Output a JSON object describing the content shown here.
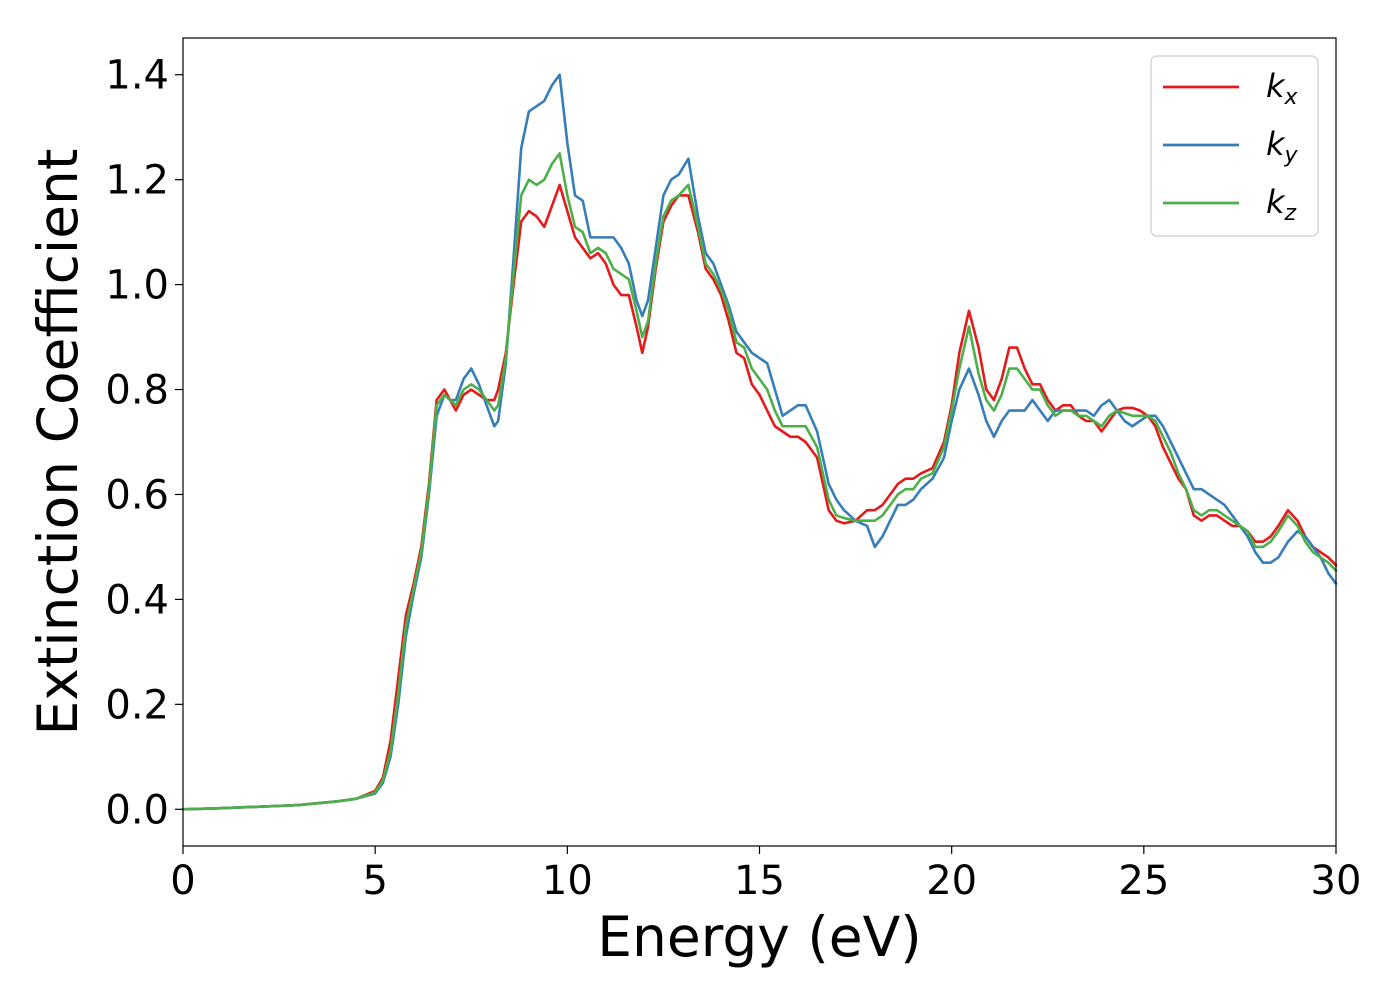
{
  "chart_data": {
    "type": "line",
    "title": "",
    "xlabel": "Energy (eV)",
    "ylabel": "Extinction Coefficient",
    "xlim": [
      0,
      30
    ],
    "ylim": [
      -0.07,
      1.47
    ],
    "xticks": [
      0,
      5,
      10,
      15,
      20,
      25,
      30
    ],
    "yticks": [
      0.0,
      0.2,
      0.4,
      0.6,
      0.8,
      1.0,
      1.2,
      1.4
    ],
    "xtick_labels": [
      "0",
      "5",
      "10",
      "15",
      "20",
      "25",
      "30"
    ],
    "ytick_labels": [
      "0.0",
      "0.2",
      "0.4",
      "0.6",
      "0.8",
      "1.0",
      "1.2",
      "1.4"
    ],
    "grid": false,
    "legend": "top-right",
    "series": [
      {
        "name": "k",
        "subscript": "x",
        "color": "#e41a1c",
        "x": [
          0,
          1,
          2,
          3,
          4,
          4.5,
          5,
          5.2,
          5.4,
          5.6,
          5.8,
          6.0,
          6.2,
          6.4,
          6.6,
          6.8,
          6.95,
          7.1,
          7.3,
          7.5,
          7.7,
          7.9,
          8.1,
          8.2,
          8.4,
          8.6,
          8.8,
          9.0,
          9.2,
          9.4,
          9.6,
          9.8,
          10.0,
          10.2,
          10.4,
          10.6,
          10.8,
          11.0,
          11.2,
          11.4,
          11.6,
          11.8,
          11.95,
          12.1,
          12.3,
          12.5,
          12.7,
          12.9,
          13.15,
          13.4,
          13.6,
          13.8,
          14.0,
          14.2,
          14.4,
          14.6,
          14.8,
          15.0,
          15.2,
          15.4,
          15.6,
          15.8,
          16.0,
          16.2,
          16.5,
          16.8,
          17.0,
          17.2,
          17.5,
          17.8,
          18.0,
          18.2,
          18.4,
          18.6,
          18.8,
          19.0,
          19.2,
          19.5,
          19.8,
          20.0,
          20.2,
          20.45,
          20.7,
          20.9,
          21.1,
          21.3,
          21.5,
          21.7,
          21.9,
          22.1,
          22.3,
          22.5,
          22.7,
          22.9,
          23.1,
          23.3,
          23.5,
          23.7,
          23.9,
          24.1,
          24.3,
          24.5,
          24.7,
          24.9,
          25.1,
          25.3,
          25.5,
          25.7,
          25.9,
          26.1,
          26.3,
          26.5,
          26.7,
          26.9,
          27.1,
          27.3,
          27.5,
          27.7,
          27.9,
          28.1,
          28.3,
          28.5,
          28.75,
          29.0,
          29.2,
          29.4,
          29.6,
          29.8,
          30.0
        ],
        "values": [
          0.0,
          0.002,
          0.005,
          0.008,
          0.015,
          0.02,
          0.035,
          0.06,
          0.13,
          0.25,
          0.37,
          0.43,
          0.5,
          0.62,
          0.78,
          0.8,
          0.78,
          0.76,
          0.79,
          0.8,
          0.79,
          0.78,
          0.78,
          0.8,
          0.87,
          1.0,
          1.12,
          1.14,
          1.13,
          1.11,
          1.15,
          1.19,
          1.14,
          1.09,
          1.07,
          1.05,
          1.06,
          1.04,
          1.0,
          0.98,
          0.98,
          0.92,
          0.87,
          0.92,
          1.03,
          1.12,
          1.15,
          1.17,
          1.17,
          1.1,
          1.03,
          1.01,
          0.98,
          0.93,
          0.87,
          0.86,
          0.81,
          0.79,
          0.76,
          0.73,
          0.72,
          0.71,
          0.71,
          0.7,
          0.67,
          0.57,
          0.55,
          0.545,
          0.55,
          0.57,
          0.57,
          0.58,
          0.6,
          0.62,
          0.63,
          0.63,
          0.64,
          0.65,
          0.7,
          0.77,
          0.87,
          0.95,
          0.88,
          0.8,
          0.78,
          0.82,
          0.88,
          0.88,
          0.84,
          0.81,
          0.81,
          0.78,
          0.76,
          0.77,
          0.77,
          0.75,
          0.74,
          0.74,
          0.72,
          0.74,
          0.76,
          0.765,
          0.765,
          0.76,
          0.75,
          0.73,
          0.69,
          0.66,
          0.63,
          0.61,
          0.56,
          0.55,
          0.56,
          0.56,
          0.55,
          0.54,
          0.54,
          0.53,
          0.51,
          0.51,
          0.52,
          0.54,
          0.57,
          0.55,
          0.52,
          0.5,
          0.49,
          0.48,
          0.465
        ]
      },
      {
        "name": "k",
        "subscript": "y",
        "color": "#377eb8",
        "x": [
          0,
          1,
          2,
          3,
          4,
          4.5,
          5,
          5.2,
          5.4,
          5.6,
          5.8,
          6.0,
          6.2,
          6.4,
          6.6,
          6.8,
          6.95,
          7.1,
          7.3,
          7.5,
          7.7,
          7.9,
          8.1,
          8.2,
          8.4,
          8.6,
          8.8,
          9.0,
          9.2,
          9.4,
          9.6,
          9.8,
          10.0,
          10.2,
          10.4,
          10.6,
          10.8,
          11.0,
          11.2,
          11.4,
          11.6,
          11.8,
          11.95,
          12.1,
          12.3,
          12.5,
          12.7,
          12.9,
          13.15,
          13.4,
          13.6,
          13.8,
          14.0,
          14.2,
          14.4,
          14.6,
          14.8,
          15.0,
          15.2,
          15.4,
          15.6,
          15.8,
          16.0,
          16.2,
          16.5,
          16.8,
          17.0,
          17.2,
          17.5,
          17.8,
          18.0,
          18.2,
          18.4,
          18.6,
          18.8,
          19.0,
          19.2,
          19.5,
          19.8,
          20.0,
          20.2,
          20.45,
          20.7,
          20.9,
          21.1,
          21.3,
          21.5,
          21.7,
          21.9,
          22.1,
          22.3,
          22.5,
          22.7,
          22.9,
          23.1,
          23.3,
          23.5,
          23.7,
          23.9,
          24.1,
          24.3,
          24.5,
          24.7,
          24.9,
          25.1,
          25.3,
          25.5,
          25.7,
          25.9,
          26.1,
          26.3,
          26.5,
          26.7,
          26.9,
          27.1,
          27.3,
          27.5,
          27.7,
          27.9,
          28.1,
          28.3,
          28.5,
          28.75,
          29.0,
          29.2,
          29.4,
          29.6,
          29.8,
          30.0
        ],
        "values": [
          0.0,
          0.002,
          0.005,
          0.008,
          0.015,
          0.02,
          0.03,
          0.05,
          0.1,
          0.2,
          0.33,
          0.41,
          0.48,
          0.6,
          0.75,
          0.79,
          0.78,
          0.78,
          0.82,
          0.84,
          0.81,
          0.77,
          0.73,
          0.74,
          0.85,
          1.05,
          1.26,
          1.33,
          1.34,
          1.35,
          1.38,
          1.4,
          1.27,
          1.17,
          1.16,
          1.09,
          1.09,
          1.09,
          1.09,
          1.07,
          1.04,
          0.97,
          0.94,
          0.97,
          1.07,
          1.17,
          1.2,
          1.21,
          1.24,
          1.13,
          1.06,
          1.04,
          1.0,
          0.96,
          0.91,
          0.89,
          0.87,
          0.86,
          0.85,
          0.8,
          0.75,
          0.76,
          0.77,
          0.77,
          0.72,
          0.62,
          0.59,
          0.57,
          0.55,
          0.54,
          0.5,
          0.52,
          0.55,
          0.58,
          0.58,
          0.59,
          0.61,
          0.63,
          0.67,
          0.74,
          0.8,
          0.84,
          0.79,
          0.74,
          0.71,
          0.74,
          0.76,
          0.76,
          0.76,
          0.78,
          0.76,
          0.74,
          0.76,
          0.76,
          0.76,
          0.76,
          0.76,
          0.75,
          0.77,
          0.78,
          0.76,
          0.74,
          0.73,
          0.74,
          0.75,
          0.75,
          0.73,
          0.7,
          0.67,
          0.64,
          0.61,
          0.61,
          0.6,
          0.59,
          0.58,
          0.56,
          0.54,
          0.52,
          0.49,
          0.47,
          0.47,
          0.48,
          0.51,
          0.53,
          0.52,
          0.5,
          0.48,
          0.45,
          0.43
        ]
      },
      {
        "name": "k",
        "subscript": "z",
        "color": "#4daf4a",
        "x": [
          0,
          1,
          2,
          3,
          4,
          4.5,
          5,
          5.2,
          5.4,
          5.6,
          5.8,
          6.0,
          6.2,
          6.4,
          6.6,
          6.8,
          6.95,
          7.1,
          7.3,
          7.5,
          7.7,
          7.9,
          8.1,
          8.2,
          8.4,
          8.6,
          8.8,
          9.0,
          9.2,
          9.4,
          9.6,
          9.8,
          10.0,
          10.2,
          10.4,
          10.6,
          10.8,
          11.0,
          11.2,
          11.4,
          11.6,
          11.8,
          11.95,
          12.1,
          12.3,
          12.5,
          12.7,
          12.9,
          13.15,
          13.4,
          13.6,
          13.8,
          14.0,
          14.2,
          14.4,
          14.6,
          14.8,
          15.0,
          15.2,
          15.4,
          15.6,
          15.8,
          16.0,
          16.2,
          16.5,
          16.8,
          17.0,
          17.2,
          17.5,
          17.8,
          18.0,
          18.2,
          18.4,
          18.6,
          18.8,
          19.0,
          19.2,
          19.5,
          19.8,
          20.0,
          20.2,
          20.45,
          20.7,
          20.9,
          21.1,
          21.3,
          21.5,
          21.7,
          21.9,
          22.1,
          22.3,
          22.5,
          22.7,
          22.9,
          23.1,
          23.3,
          23.5,
          23.7,
          23.9,
          24.1,
          24.3,
          24.5,
          24.7,
          24.9,
          25.1,
          25.3,
          25.5,
          25.7,
          25.9,
          26.1,
          26.3,
          26.5,
          26.7,
          26.9,
          27.1,
          27.3,
          27.5,
          27.7,
          27.9,
          28.1,
          28.3,
          28.5,
          28.75,
          29.0,
          29.2,
          29.4,
          29.6,
          29.8,
          30.0
        ],
        "values": [
          0.0,
          0.002,
          0.005,
          0.008,
          0.015,
          0.02,
          0.032,
          0.055,
          0.11,
          0.22,
          0.35,
          0.42,
          0.49,
          0.61,
          0.77,
          0.79,
          0.78,
          0.77,
          0.8,
          0.81,
          0.8,
          0.78,
          0.76,
          0.77,
          0.86,
          1.02,
          1.17,
          1.2,
          1.19,
          1.2,
          1.23,
          1.25,
          1.17,
          1.11,
          1.1,
          1.06,
          1.07,
          1.06,
          1.03,
          1.02,
          1.01,
          0.95,
          0.9,
          0.93,
          1.04,
          1.13,
          1.16,
          1.17,
          1.19,
          1.11,
          1.04,
          1.02,
          0.99,
          0.95,
          0.89,
          0.88,
          0.84,
          0.82,
          0.8,
          0.76,
          0.73,
          0.73,
          0.73,
          0.73,
          0.69,
          0.59,
          0.56,
          0.555,
          0.55,
          0.55,
          0.55,
          0.56,
          0.58,
          0.6,
          0.61,
          0.61,
          0.63,
          0.64,
          0.69,
          0.76,
          0.84,
          0.92,
          0.83,
          0.78,
          0.76,
          0.79,
          0.84,
          0.84,
          0.82,
          0.8,
          0.8,
          0.77,
          0.75,
          0.76,
          0.76,
          0.75,
          0.75,
          0.74,
          0.73,
          0.75,
          0.76,
          0.755,
          0.75,
          0.75,
          0.75,
          0.74,
          0.71,
          0.68,
          0.64,
          0.61,
          0.57,
          0.56,
          0.57,
          0.57,
          0.56,
          0.55,
          0.54,
          0.53,
          0.5,
          0.5,
          0.51,
          0.53,
          0.56,
          0.54,
          0.51,
          0.49,
          0.48,
          0.47,
          0.455
        ]
      }
    ]
  }
}
